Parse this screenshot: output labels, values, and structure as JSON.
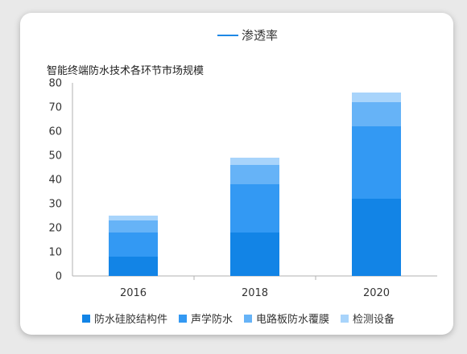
{
  "chart_data": {
    "type": "bar",
    "stacked": true,
    "title": "智能终端防水技术各环节市场规模",
    "top_legend": {
      "label": "渗透率",
      "color": "#1e88e5"
    },
    "categories": [
      "2016",
      "2018",
      "2020"
    ],
    "ylim": [
      0,
      80
    ],
    "yticks": [
      0,
      10,
      20,
      30,
      40,
      50,
      60,
      70,
      80
    ],
    "grid": false,
    "legend_position": "bottom",
    "series": [
      {
        "name": "防水硅胶结构件",
        "color": "#1284e6",
        "values": [
          8,
          18,
          32
        ]
      },
      {
        "name": "声学防水",
        "color": "#3399f3",
        "values": [
          10,
          20,
          30
        ]
      },
      {
        "name": "电路板防水覆膜",
        "color": "#66b3f7",
        "values": [
          5,
          8,
          10
        ]
      },
      {
        "name": "检测设备",
        "color": "#a8d4fb",
        "values": [
          2,
          3,
          4
        ]
      }
    ]
  }
}
